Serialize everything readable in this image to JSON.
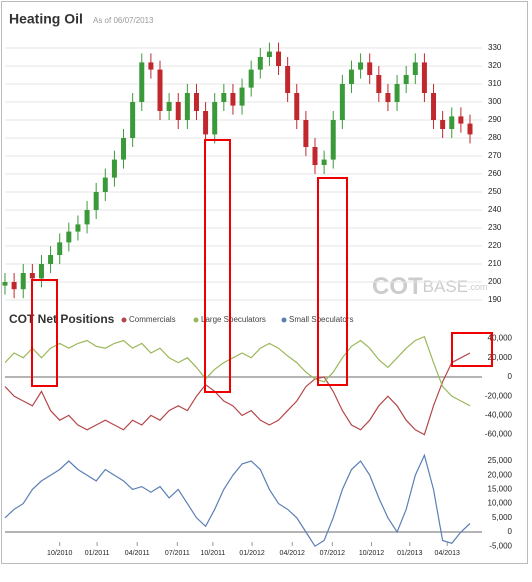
{
  "chart_data": [
    {
      "type": "candlestick",
      "title": "Heating Oil",
      "subtitle": "As of 06/07/2013",
      "watermark": [
        "COT",
        "BASE",
        ".com"
      ],
      "up_color": "#3a9a3a",
      "down_color": "#c0282d",
      "grid": true,
      "xlim": [
        0,
        51
      ],
      "ylim": [
        187,
        335
      ],
      "yticks": [
        190,
        200,
        210,
        220,
        230,
        240,
        250,
        260,
        270,
        280,
        290,
        300,
        310,
        320,
        330
      ],
      "open": [
        198,
        200,
        196,
        205,
        202,
        210,
        215,
        222,
        228,
        232,
        240,
        250,
        258,
        268,
        280,
        300,
        322,
        318,
        295,
        300,
        290,
        305,
        295,
        282,
        300,
        305,
        298,
        308,
        318,
        325,
        328,
        320,
        305,
        290,
        275,
        265,
        268,
        290,
        310,
        318,
        322,
        315,
        305,
        300,
        310,
        315,
        322,
        305,
        290,
        285,
        292,
        288
      ],
      "high": [
        205,
        205,
        210,
        210,
        215,
        220,
        227,
        233,
        237,
        245,
        255,
        263,
        273,
        285,
        305,
        327,
        327,
        323,
        305,
        305,
        310,
        310,
        300,
        305,
        310,
        310,
        313,
        323,
        330,
        333,
        333,
        325,
        310,
        295,
        280,
        273,
        295,
        315,
        323,
        327,
        327,
        320,
        310,
        315,
        320,
        327,
        327,
        310,
        295,
        297,
        297,
        293
      ],
      "low": [
        193,
        191,
        191,
        197,
        197,
        205,
        210,
        217,
        223,
        227,
        235,
        245,
        253,
        263,
        275,
        295,
        313,
        290,
        290,
        285,
        285,
        290,
        277,
        277,
        295,
        293,
        293,
        303,
        313,
        320,
        315,
        300,
        285,
        270,
        260,
        260,
        263,
        285,
        305,
        313,
        310,
        300,
        295,
        295,
        305,
        310,
        300,
        285,
        280,
        280,
        283,
        277
      ],
      "close": [
        200,
        196,
        205,
        202,
        210,
        215,
        222,
        228,
        232,
        240,
        250,
        258,
        268,
        280,
        300,
        322,
        318,
        295,
        300,
        290,
        305,
        295,
        282,
        300,
        305,
        298,
        308,
        318,
        325,
        328,
        320,
        305,
        290,
        275,
        265,
        268,
        290,
        310,
        318,
        322,
        315,
        305,
        300,
        310,
        315,
        322,
        305,
        290,
        285,
        292,
        288,
        282
      ]
    },
    {
      "type": "line",
      "title": "COT Net Positions",
      "xlim": [
        0,
        51
      ],
      "xticks": [
        {
          "value": 6.0,
          "label": "10/2010"
        },
        {
          "value": 10.1,
          "label": "01/2011"
        },
        {
          "value": 14.5,
          "label": "04/2011"
        },
        {
          "value": 18.9,
          "label": "07/2011"
        },
        {
          "value": 22.8,
          "label": "10/2011"
        },
        {
          "value": 27.1,
          "label": "01/2012"
        },
        {
          "value": 31.5,
          "label": "04/2012"
        },
        {
          "value": 35.9,
          "label": "07/2012"
        },
        {
          "value": 40.2,
          "label": "10/2012"
        },
        {
          "value": 44.4,
          "label": "01/2013"
        },
        {
          "value": 48.5,
          "label": "04/2013"
        }
      ],
      "ylim": [
        -70000,
        45000
      ],
      "yticks": [
        {
          "value": 40000,
          "label": "40,000"
        },
        {
          "value": 20000,
          "label": "20,000"
        },
        0,
        {
          "value": -20000,
          "label": "-20,000"
        },
        {
          "value": -40000,
          "label": "-40,000"
        },
        {
          "value": -60000,
          "label": "-60,000"
        }
      ],
      "y2lim": [
        -8000,
        28000
      ],
      "y2ticks": [
        {
          "value": 25000,
          "label": "25,000"
        },
        {
          "value": 20000,
          "label": "20,000"
        },
        {
          "value": 15000,
          "label": "15,000"
        },
        {
          "value": 10000,
          "label": "10,000"
        },
        {
          "value": 5000,
          "label": "5,000"
        },
        0,
        {
          "value": -5000,
          "label": "-5,000"
        }
      ],
      "series": [
        {
          "name": "Commercials",
          "color": "#b5474a",
          "values": [
            -10000,
            -20000,
            -25000,
            -30000,
            -15000,
            -35000,
            -45000,
            -40000,
            -50000,
            -55000,
            -50000,
            -45000,
            -50000,
            -55000,
            -45000,
            -50000,
            -40000,
            -45000,
            -35000,
            -30000,
            -35000,
            -20000,
            -8000,
            -15000,
            -25000,
            -30000,
            -40000,
            -35000,
            -45000,
            -50000,
            -45000,
            -35000,
            -25000,
            -10000,
            -2000,
            0,
            -15000,
            -35000,
            -50000,
            -55000,
            -45000,
            -30000,
            -20000,
            -30000,
            -45000,
            -55000,
            -60000,
            -30000,
            -5000,
            15000,
            20000,
            25000
          ]
        },
        {
          "name": "Large Speculators",
          "color": "#9ab85a",
          "values": [
            15000,
            25000,
            20000,
            30000,
            20000,
            30000,
            35000,
            30000,
            35000,
            38000,
            32000,
            30000,
            35000,
            38000,
            30000,
            35000,
            25000,
            30000,
            20000,
            15000,
            20000,
            10000,
            -2000,
            8000,
            15000,
            20000,
            25000,
            20000,
            30000,
            35000,
            30000,
            22000,
            15000,
            5000,
            -2000,
            -5000,
            5000,
            20000,
            32000,
            38000,
            30000,
            18000,
            10000,
            20000,
            30000,
            38000,
            42000,
            15000,
            -10000,
            -20000,
            -25000,
            -30000
          ]
        },
        {
          "name": "Small Speculators",
          "color": "#5b7fb5",
          "axis": "y2",
          "values": [
            5000,
            8000,
            10000,
            15000,
            18000,
            20000,
            22000,
            25000,
            22000,
            20000,
            18000,
            22000,
            20000,
            18000,
            15000,
            16000,
            14000,
            16000,
            12000,
            15000,
            10000,
            5000,
            2000,
            8000,
            15000,
            20000,
            24000,
            25000,
            22000,
            15000,
            10000,
            8000,
            5000,
            0,
            -5000,
            -3000,
            5000,
            15000,
            22000,
            25000,
            20000,
            12000,
            5000,
            0,
            8000,
            20000,
            27000,
            15000,
            -3000,
            -4000,
            0,
            3000
          ]
        }
      ]
    }
  ]
}
